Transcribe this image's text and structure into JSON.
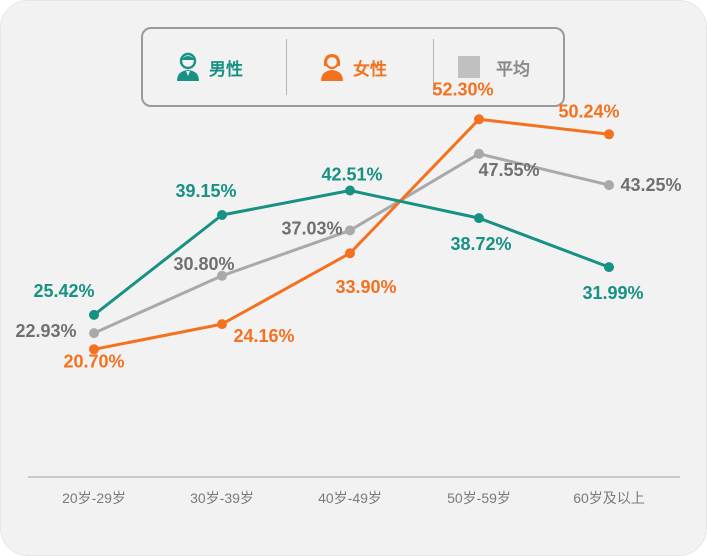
{
  "colors": {
    "male": "#169183",
    "female": "#f4711f",
    "average": "#a9a9a9",
    "axis": "#c9c9c9"
  },
  "legend": {
    "male": {
      "label": "男性",
      "icon": "male-person-icon"
    },
    "female": {
      "label": "女性",
      "icon": "female-person-icon"
    },
    "average": {
      "label": "平均",
      "icon": "gray-square-icon"
    }
  },
  "chart_data": {
    "type": "line",
    "categories": [
      "20岁-29岁",
      "30岁-39岁",
      "40岁-49岁",
      "50岁-59岁",
      "60岁及以上"
    ],
    "series": [
      {
        "name": "男性",
        "values": [
          25.42,
          39.15,
          42.51,
          38.72,
          31.99
        ],
        "labels": [
          "25.42%",
          "39.15%",
          "42.51%",
          "38.72%",
          "31.99%"
        ]
      },
      {
        "name": "女性",
        "values": [
          20.7,
          24.16,
          33.9,
          52.3,
          50.24
        ],
        "labels": [
          "20.70%",
          "24.16%",
          "33.90%",
          "52.30%",
          "50.24%"
        ]
      },
      {
        "name": "平均",
        "values": [
          22.93,
          30.8,
          37.03,
          47.55,
          43.25
        ],
        "labels": [
          "22.93%",
          "30.80%",
          "37.03%",
          "47.55%",
          "43.25%"
        ]
      }
    ],
    "xlabel": "",
    "ylabel": "",
    "y_axis_visible": false,
    "grid": false,
    "legend_position": "top-center"
  }
}
